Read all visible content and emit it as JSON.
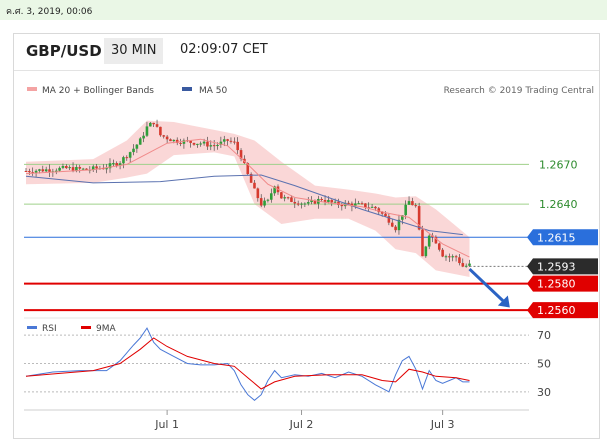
{
  "topbar": {
    "datetime": "ค.ศ. 3, 2019, 00:06"
  },
  "header": {
    "pair": "GBP/USD",
    "timeframe": "30 MIN",
    "time": "02:09:07 CET"
  },
  "legend": [
    {
      "name": "MA 20 + Bollinger Bands",
      "color": "#f4a3a3"
    },
    {
      "name": "MA 50",
      "color": "#3a5aa0"
    }
  ],
  "credit": "Research © 2019 Trading Central",
  "colors": {
    "up": "#2e9e3a",
    "down": "#d63a2f",
    "band": "#f8caca",
    "support": "#e00000",
    "pivot": "#2a6fdc",
    "resistance": "#9fd08a",
    "arrow": "#2b63c4"
  },
  "chart_data": [
    {
      "type": "line",
      "ylim": [
        1.2545,
        1.2705
      ],
      "x_ticks": [
        "Jul 1",
        "Jul 2",
        "Jul 3"
      ],
      "levels": [
        {
          "value": 1.267,
          "label": "1.2670",
          "kind": "resistance"
        },
        {
          "value": 1.264,
          "label": "1.2640",
          "kind": "resistance"
        },
        {
          "value": 1.2615,
          "label": "1.2615",
          "kind": "pivot"
        },
        {
          "value": 1.2593,
          "label": "1.2593",
          "kind": "last"
        },
        {
          "value": 1.258,
          "label": "1.2580",
          "kind": "support"
        },
        {
          "value": 1.256,
          "label": "1.2560",
          "kind": "support"
        }
      ],
      "price_path": [
        [
          0,
          1.2665
        ],
        [
          6,
          1.2666
        ],
        [
          12,
          1.2667
        ],
        [
          18,
          1.2666
        ],
        [
          24,
          1.2668
        ],
        [
          28,
          1.2672
        ],
        [
          32,
          1.2682
        ],
        [
          34,
          1.2688
        ],
        [
          36,
          1.2698
        ],
        [
          38,
          1.2702
        ],
        [
          40,
          1.2692
        ],
        [
          44,
          1.2688
        ],
        [
          48,
          1.2687
        ],
        [
          52,
          1.2686
        ],
        [
          56,
          1.2684
        ],
        [
          60,
          1.2688
        ],
        [
          62,
          1.2686
        ],
        [
          64,
          1.2676
        ],
        [
          66,
          1.2662
        ],
        [
          68,
          1.265
        ],
        [
          70,
          1.264
        ],
        [
          72,
          1.2642
        ],
        [
          74,
          1.2655
        ],
        [
          76,
          1.2645
        ],
        [
          80,
          1.2642
        ],
        [
          84,
          1.264
        ],
        [
          88,
          1.2644
        ],
        [
          92,
          1.264
        ],
        [
          96,
          1.264
        ],
        [
          100,
          1.2639
        ],
        [
          104,
          1.2637
        ],
        [
          108,
          1.2628
        ],
        [
          110,
          1.2622
        ],
        [
          112,
          1.2633
        ],
        [
          114,
          1.2642
        ],
        [
          116,
          1.2638
        ],
        [
          118,
          1.26
        ],
        [
          120,
          1.2618
        ],
        [
          122,
          1.2612
        ],
        [
          124,
          1.2602
        ],
        [
          126,
          1.26
        ],
        [
          128,
          1.26
        ],
        [
          130,
          1.2593
        ],
        [
          132,
          1.2594
        ]
      ],
      "ma50_path": [
        [
          0,
          1.2661
        ],
        [
          20,
          1.2656
        ],
        [
          40,
          1.2657
        ],
        [
          56,
          1.2661
        ],
        [
          70,
          1.2662
        ],
        [
          80,
          1.2654
        ],
        [
          90,
          1.2645
        ],
        [
          100,
          1.2636
        ],
        [
          110,
          1.2628
        ],
        [
          120,
          1.262
        ],
        [
          130,
          1.2617
        ]
      ],
      "ma20_path": [
        [
          0,
          1.2663
        ],
        [
          20,
          1.2666
        ],
        [
          30,
          1.267
        ],
        [
          36,
          1.2678
        ],
        [
          42,
          1.2686
        ],
        [
          52,
          1.2689
        ],
        [
          60,
          1.2684
        ],
        [
          66,
          1.267
        ],
        [
          72,
          1.2655
        ],
        [
          80,
          1.2645
        ],
        [
          90,
          1.2641
        ],
        [
          100,
          1.2638
        ],
        [
          108,
          1.2633
        ],
        [
          114,
          1.263
        ],
        [
          118,
          1.2622
        ],
        [
          124,
          1.261
        ],
        [
          132,
          1.26
        ]
      ],
      "bb_upper": [
        [
          0,
          1.2672
        ],
        [
          20,
          1.2674
        ],
        [
          30,
          1.2688
        ],
        [
          36,
          1.2703
        ],
        [
          44,
          1.2702
        ],
        [
          56,
          1.2696
        ],
        [
          62,
          1.2693
        ],
        [
          68,
          1.2688
        ],
        [
          76,
          1.2672
        ],
        [
          86,
          1.2654
        ],
        [
          96,
          1.2651
        ],
        [
          104,
          1.2648
        ],
        [
          110,
          1.2645
        ],
        [
          116,
          1.2646
        ],
        [
          122,
          1.2636
        ],
        [
          132,
          1.2615
        ]
      ],
      "bb_lower": [
        [
          0,
          1.2655
        ],
        [
          20,
          1.2656
        ],
        [
          30,
          1.266
        ],
        [
          36,
          1.2663
        ],
        [
          44,
          1.2677
        ],
        [
          56,
          1.2679
        ],
        [
          62,
          1.2676
        ],
        [
          68,
          1.264
        ],
        [
          76,
          1.2625
        ],
        [
          86,
          1.2629
        ],
        [
          96,
          1.2629
        ],
        [
          104,
          1.262
        ],
        [
          110,
          1.2606
        ],
        [
          116,
          1.2603
        ],
        [
          122,
          1.259
        ],
        [
          132,
          1.2585
        ]
      ],
      "forecast_arrow": [
        [
          132,
          1.2591
        ],
        [
          144,
          1.2562
        ]
      ]
    },
    {
      "type": "line",
      "title": "RSI",
      "ylim": [
        20,
        80
      ],
      "y_ticks": [
        30,
        50,
        70
      ],
      "series": [
        {
          "name": "RSI",
          "color": "#4a78d6",
          "values": [
            [
              0,
              41
            ],
            [
              8,
              44
            ],
            [
              16,
              45
            ],
            [
              24,
              45
            ],
            [
              28,
              52
            ],
            [
              32,
              63
            ],
            [
              34,
              68
            ],
            [
              36,
              75
            ],
            [
              38,
              65
            ],
            [
              40,
              60
            ],
            [
              44,
              55
            ],
            [
              48,
              50
            ],
            [
              52,
              49
            ],
            [
              56,
              49
            ],
            [
              60,
              50
            ],
            [
              62,
              45
            ],
            [
              64,
              35
            ],
            [
              66,
              28
            ],
            [
              68,
              24
            ],
            [
              70,
              28
            ],
            [
              72,
              38
            ],
            [
              74,
              45
            ],
            [
              76,
              40
            ],
            [
              80,
              42
            ],
            [
              84,
              41
            ],
            [
              88,
              43
            ],
            [
              92,
              40
            ],
            [
              96,
              44
            ],
            [
              100,
              41
            ],
            [
              104,
              35
            ],
            [
              108,
              30
            ],
            [
              110,
              42
            ],
            [
              112,
              52
            ],
            [
              114,
              55
            ],
            [
              116,
              46
            ],
            [
              118,
              32
            ],
            [
              120,
              45
            ],
            [
              122,
              38
            ],
            [
              124,
              36
            ],
            [
              126,
              38
            ],
            [
              128,
              40
            ],
            [
              130,
              37
            ],
            [
              132,
              37
            ]
          ]
        },
        {
          "name": "9MA",
          "color": "#e00000",
          "values": [
            [
              0,
              41
            ],
            [
              10,
              43
            ],
            [
              20,
              45
            ],
            [
              28,
              50
            ],
            [
              34,
              60
            ],
            [
              38,
              68
            ],
            [
              42,
              62
            ],
            [
              48,
              55
            ],
            [
              56,
              50
            ],
            [
              62,
              48
            ],
            [
              66,
              40
            ],
            [
              70,
              32
            ],
            [
              74,
              37
            ],
            [
              80,
              41
            ],
            [
              90,
              42
            ],
            [
              100,
              42
            ],
            [
              106,
              38
            ],
            [
              110,
              37
            ],
            [
              114,
              46
            ],
            [
              118,
              44
            ],
            [
              122,
              41
            ],
            [
              128,
              40
            ],
            [
              132,
              38
            ]
          ]
        }
      ]
    }
  ]
}
